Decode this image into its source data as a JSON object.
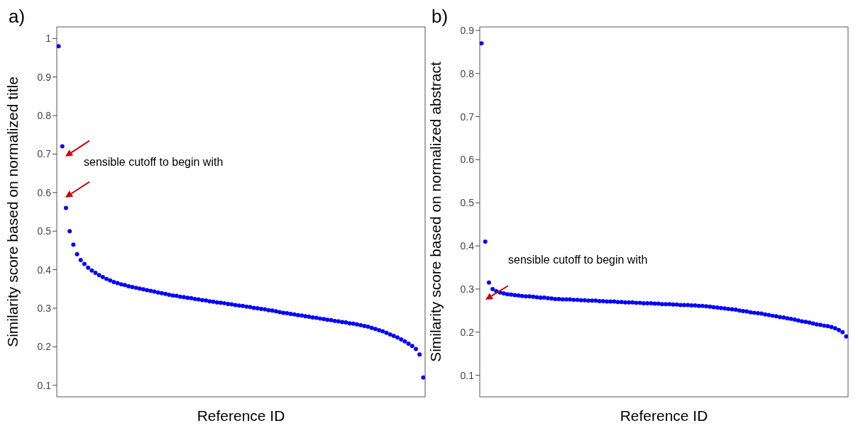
{
  "chart_data": [
    {
      "type": "scatter",
      "title": "a)",
      "xlabel": "Reference ID",
      "ylabel": "Similarity score based on normalized title",
      "ylim": [
        0.07,
        1.03
      ],
      "yticks": [
        0.1,
        0.2,
        0.3,
        0.4,
        0.5,
        0.6,
        0.7,
        0.8,
        0.9,
        1.0
      ],
      "marker": "circle",
      "annotations": [
        "sensible cutoff to begin with"
      ],
      "categories": [
        null,
        null,
        null,
        null,
        null,
        null,
        null,
        null,
        null,
        null,
        null,
        null,
        null,
        null,
        null,
        null,
        null,
        null,
        null,
        null,
        null,
        null,
        null,
        null,
        null,
        null,
        null,
        null,
        null,
        null,
        null,
        null,
        null,
        null,
        null,
        null,
        null,
        null,
        null,
        null,
        null,
        null,
        null,
        null,
        null,
        null,
        null,
        null,
        null,
        null,
        null,
        null,
        null,
        null,
        null,
        null,
        null,
        null,
        null,
        null,
        null,
        null,
        null,
        null,
        null,
        null,
        null,
        null,
        null,
        null,
        null,
        null,
        null,
        null,
        null,
        null,
        null,
        null,
        null,
        null,
        null,
        null,
        null,
        null,
        null,
        null,
        null,
        null,
        null,
        null,
        null,
        null,
        null,
        null,
        null,
        null,
        null,
        null,
        null,
        null
      ],
      "series": [
        {
          "color": "#0000ff",
          "values": [
            0.98,
            0.72,
            0.56,
            0.5,
            0.465,
            0.44,
            0.425,
            0.415,
            0.405,
            0.398,
            0.392,
            0.386,
            0.381,
            0.376,
            0.372,
            0.368,
            0.365,
            0.362,
            0.36,
            0.357,
            0.355,
            0.353,
            0.351,
            0.349,
            0.347,
            0.345,
            0.343,
            0.341,
            0.339,
            0.337,
            0.335,
            0.333,
            0.332,
            0.33,
            0.329,
            0.327,
            0.326,
            0.324,
            0.323,
            0.321,
            0.32,
            0.318,
            0.317,
            0.315,
            0.314,
            0.313,
            0.311,
            0.31,
            0.308,
            0.307,
            0.306,
            0.304,
            0.303,
            0.301,
            0.3,
            0.298,
            0.297,
            0.295,
            0.294,
            0.292,
            0.29,
            0.288,
            0.287,
            0.285,
            0.284,
            0.282,
            0.281,
            0.279,
            0.278,
            0.276,
            0.275,
            0.273,
            0.272,
            0.27,
            0.269,
            0.267,
            0.266,
            0.264,
            0.263,
            0.261,
            0.26,
            0.258,
            0.256,
            0.254,
            0.252,
            0.249,
            0.246,
            0.243,
            0.24,
            0.236,
            0.232,
            0.228,
            0.224,
            0.219,
            0.214,
            0.208,
            0.202,
            0.194,
            0.18,
            0.12
          ]
        }
      ]
    },
    {
      "type": "scatter",
      "title": "b)",
      "xlabel": "Reference ID",
      "ylabel": "Similarity score based on normalized abstract",
      "ylim": [
        0.05,
        0.908
      ],
      "yticks": [
        0.1,
        0.2,
        0.3,
        0.4,
        0.5,
        0.6,
        0.7,
        0.8,
        0.9
      ],
      "marker": "circle",
      "annotations": [
        "sensible cutoff to begin with"
      ],
      "categories": [
        null,
        null,
        null,
        null,
        null,
        null,
        null,
        null,
        null,
        null,
        null,
        null,
        null,
        null,
        null,
        null,
        null,
        null,
        null,
        null,
        null,
        null,
        null,
        null,
        null,
        null,
        null,
        null,
        null,
        null,
        null,
        null,
        null,
        null,
        null,
        null,
        null,
        null,
        null,
        null,
        null,
        null,
        null,
        null,
        null,
        null,
        null,
        null,
        null,
        null,
        null,
        null,
        null,
        null,
        null,
        null,
        null,
        null,
        null,
        null,
        null,
        null,
        null,
        null,
        null,
        null,
        null,
        null,
        null,
        null,
        null,
        null,
        null,
        null,
        null,
        null,
        null,
        null,
        null,
        null,
        null,
        null,
        null,
        null,
        null,
        null,
        null,
        null,
        null,
        null,
        null,
        null,
        null,
        null,
        null,
        null,
        null,
        null,
        null,
        null
      ],
      "series": [
        {
          "color": "#0000ff",
          "values": [
            0.87,
            0.41,
            0.315,
            0.3,
            0.295,
            0.292,
            0.29,
            0.288,
            0.287,
            0.286,
            0.285,
            0.284,
            0.283,
            0.283,
            0.282,
            0.281,
            0.28,
            0.28,
            0.279,
            0.278,
            0.277,
            0.277,
            0.276,
            0.276,
            0.276,
            0.275,
            0.275,
            0.274,
            0.274,
            0.273,
            0.273,
            0.273,
            0.272,
            0.272,
            0.271,
            0.271,
            0.271,
            0.27,
            0.27,
            0.269,
            0.269,
            0.269,
            0.268,
            0.268,
            0.267,
            0.267,
            0.267,
            0.266,
            0.266,
            0.265,
            0.265,
            0.265,
            0.264,
            0.264,
            0.263,
            0.263,
            0.263,
            0.262,
            0.262,
            0.261,
            0.261,
            0.26,
            0.259,
            0.258,
            0.257,
            0.256,
            0.255,
            0.254,
            0.253,
            0.252,
            0.25,
            0.249,
            0.248,
            0.246,
            0.245,
            0.244,
            0.243,
            0.241,
            0.24,
            0.238,
            0.237,
            0.235,
            0.234,
            0.232,
            0.231,
            0.229,
            0.227,
            0.225,
            0.224,
            0.222,
            0.22,
            0.218,
            0.217,
            0.215,
            0.214,
            0.212,
            0.209,
            0.205,
            0.2,
            0.19
          ]
        }
      ]
    }
  ]
}
